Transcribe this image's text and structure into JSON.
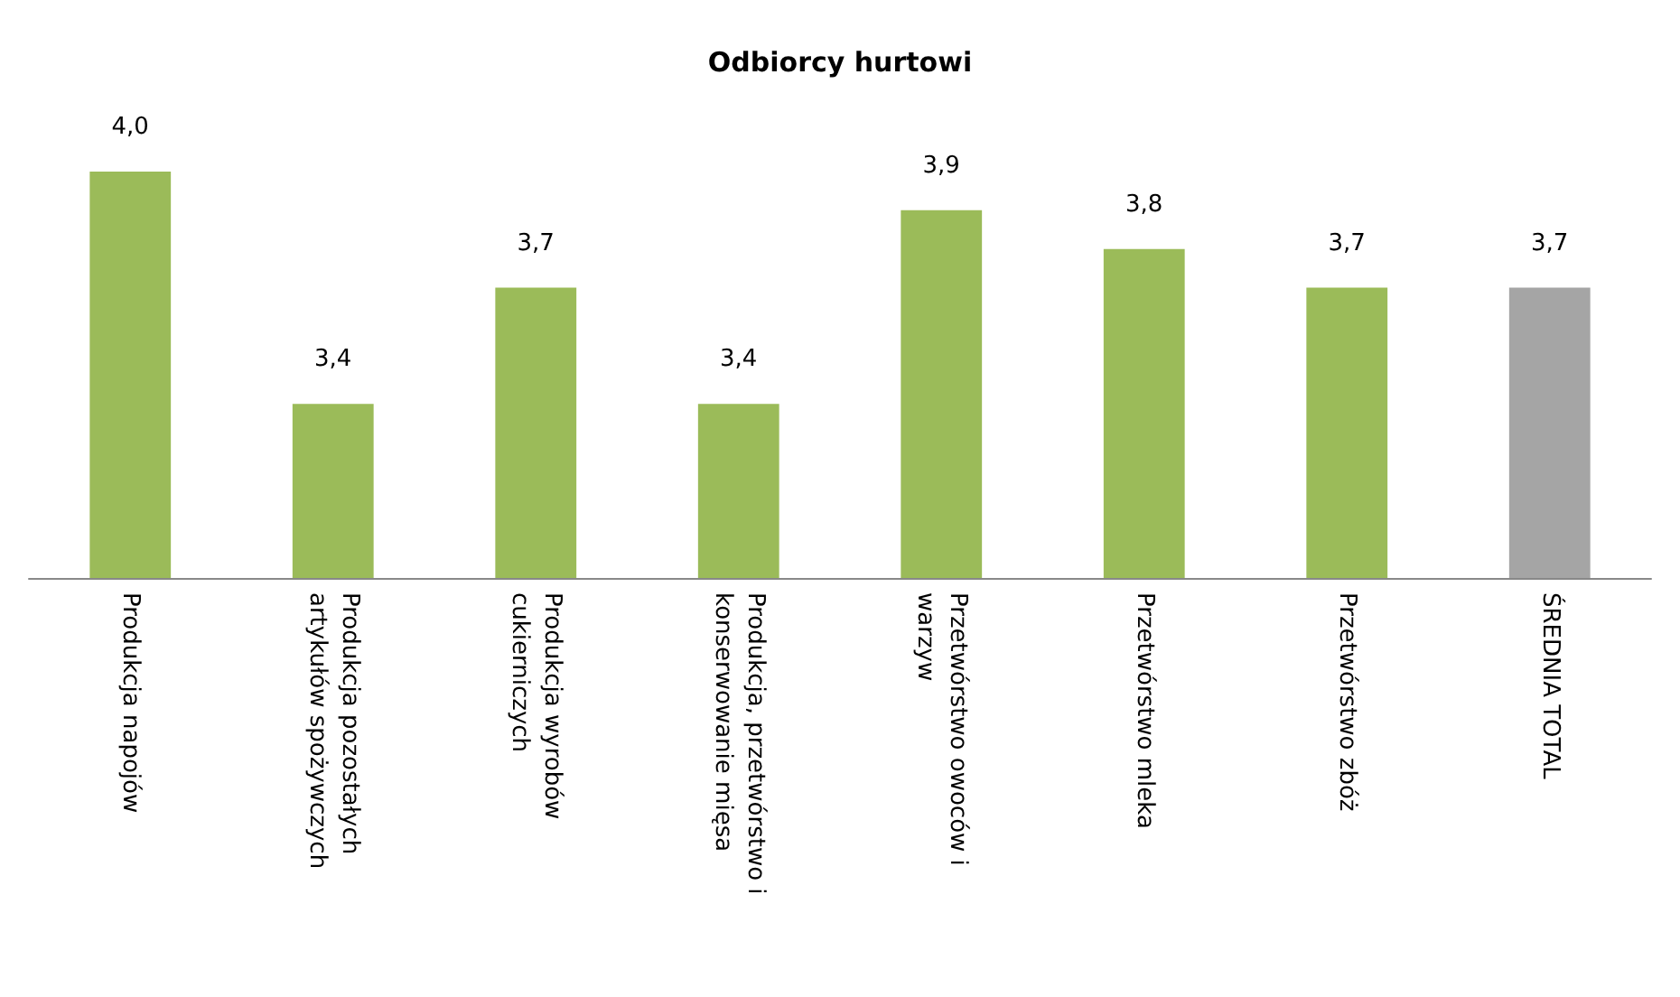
{
  "chart_data": {
    "type": "bar",
    "title": "Odbiorcy hurtowi",
    "categories": [
      "Produkcja napojów",
      "Produkcja pozostałych\nartykułów spożywczych",
      "Produkcja wyrobów\ncukierniczych",
      "Produkcja, przetwórstwo i\nkonserwowanie mięsa",
      "Przetwórstwo owoców i\nwarzyw",
      "Przetwórstwo mleka",
      "Przetwórstwo zbóż",
      "ŚREDNIA TOTAL"
    ],
    "values": [
      4.0,
      3.4,
      3.7,
      3.4,
      3.9,
      3.8,
      3.7,
      3.7
    ],
    "value_labels": [
      "4,0",
      "3,4",
      "3,7",
      "3,4",
      "3,9",
      "3,8",
      "3,7",
      "3,7"
    ],
    "colors": [
      "#9bbb59",
      "#9bbb59",
      "#9bbb59",
      "#9bbb59",
      "#9bbb59",
      "#9bbb59",
      "#9bbb59",
      "#a5a5a5"
    ],
    "ylim": [
      2.95,
      4.0
    ],
    "tick_labels": "x",
    "grid": false
  }
}
